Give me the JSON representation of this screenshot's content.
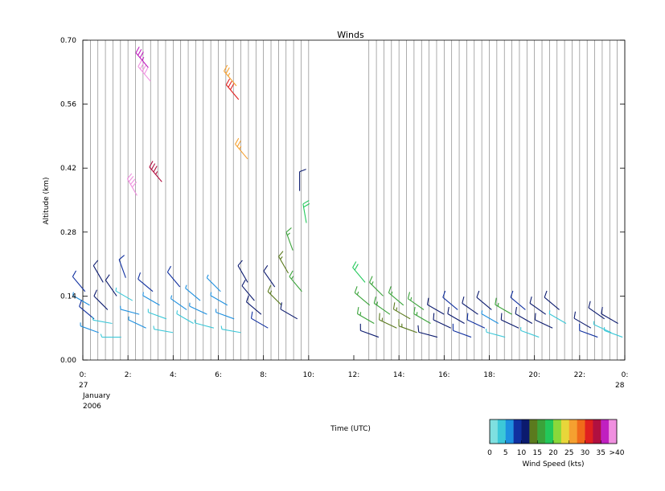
{
  "chart_data": {
    "type": "scatter",
    "title": "Winds",
    "xlabel": "Time (UTC)",
    "ylabel": "Altitude (km)",
    "xlim": [
      0,
      24
    ],
    "ylim": [
      0,
      0.7
    ],
    "grid": "vertical lines",
    "x_ticks": [
      {
        "value": 0,
        "label": "0:"
      },
      {
        "value": 2,
        "label": "2:"
      },
      {
        "value": 4,
        "label": "4:"
      },
      {
        "value": 6,
        "label": "6:"
      },
      {
        "value": 8,
        "label": "8:"
      },
      {
        "value": 10,
        "label": "10:"
      },
      {
        "value": 12,
        "label": "12:"
      },
      {
        "value": 14,
        "label": "14:"
      },
      {
        "value": 16,
        "label": "16:"
      },
      {
        "value": 18,
        "label": "18:"
      },
      {
        "value": 20,
        "label": "20:"
      },
      {
        "value": 22,
        "label": "22:"
      },
      {
        "value": 24,
        "label": "0:"
      }
    ],
    "y_ticks": [
      {
        "value": 0.0,
        "label": "0.00"
      },
      {
        "value": 0.14,
        "label": "0.14"
      },
      {
        "value": 0.28,
        "label": "0.28"
      },
      {
        "value": 0.42,
        "label": "0.42"
      },
      {
        "value": 0.56,
        "label": "0.56"
      },
      {
        "value": 0.7,
        "label": "0.70"
      }
    ],
    "date_label_start": [
      "27",
      "January",
      "2006"
    ],
    "date_label_end": [
      "28"
    ],
    "colorbar": {
      "label": "Wind Speed (kts)",
      "tick_labels": [
        "0",
        "5",
        "10",
        "15",
        "20",
        "25",
        "30",
        "35",
        ">40"
      ],
      "colors": [
        "#7fe0e0",
        "#3cc8d8",
        "#1e90e0",
        "#1030a0",
        "#0b1a6e",
        "#5b7a1e",
        "#3aa33a",
        "#22c85a",
        "#8ad83a",
        "#e8d63a",
        "#f5a030",
        "#f06a1a",
        "#e02020",
        "#b01040",
        "#c020c0",
        "#f090e0"
      ]
    },
    "barbs": [
      {
        "t": 0.1,
        "alt": 0.15,
        "dir": 320,
        "spd": 8
      },
      {
        "t": 0.3,
        "alt": 0.12,
        "dir": 300,
        "spd": 7
      },
      {
        "t": 0.5,
        "alt": 0.09,
        "dir": 310,
        "spd": 9
      },
      {
        "t": 0.7,
        "alt": 0.06,
        "dir": 290,
        "spd": 6
      },
      {
        "t": 0.9,
        "alt": 0.17,
        "dir": 330,
        "spd": 11
      },
      {
        "t": 1.1,
        "alt": 0.11,
        "dir": 315,
        "spd": 12
      },
      {
        "t": 1.3,
        "alt": 0.08,
        "dir": 280,
        "spd": 4
      },
      {
        "t": 1.5,
        "alt": 0.14,
        "dir": 325,
        "spd": 10
      },
      {
        "t": 1.7,
        "alt": 0.05,
        "dir": 270,
        "spd": 3
      },
      {
        "t": 1.9,
        "alt": 0.18,
        "dir": 340,
        "spd": 9
      },
      {
        "t": 2.2,
        "alt": 0.13,
        "dir": 300,
        "spd": 4
      },
      {
        "t": 2.5,
        "alt": 0.1,
        "dir": 285,
        "spd": 5
      },
      {
        "t": 2.8,
        "alt": 0.07,
        "dir": 295,
        "spd": 6
      },
      {
        "t": 3.1,
        "alt": 0.15,
        "dir": 310,
        "spd": 8
      },
      {
        "t": 3.4,
        "alt": 0.12,
        "dir": 300,
        "spd": 5
      },
      {
        "t": 3.7,
        "alt": 0.09,
        "dir": 290,
        "spd": 4
      },
      {
        "t": 4.0,
        "alt": 0.06,
        "dir": 280,
        "spd": 3
      },
      {
        "t": 4.3,
        "alt": 0.16,
        "dir": 320,
        "spd": 9
      },
      {
        "t": 4.6,
        "alt": 0.11,
        "dir": 305,
        "spd": 5
      },
      {
        "t": 4.9,
        "alt": 0.08,
        "dir": 300,
        "spd": 4
      },
      {
        "t": 5.2,
        "alt": 0.13,
        "dir": 310,
        "spd": 6
      },
      {
        "t": 5.5,
        "alt": 0.1,
        "dir": 295,
        "spd": 5
      },
      {
        "t": 5.8,
        "alt": 0.07,
        "dir": 285,
        "spd": 4
      },
      {
        "t": 6.1,
        "alt": 0.15,
        "dir": 315,
        "spd": 7
      },
      {
        "t": 6.4,
        "alt": 0.12,
        "dir": 300,
        "spd": 6
      },
      {
        "t": 6.7,
        "alt": 0.09,
        "dir": 290,
        "spd": 5
      },
      {
        "t": 7.0,
        "alt": 0.06,
        "dir": 280,
        "spd": 4
      },
      {
        "t": 7.3,
        "alt": 0.17,
        "dir": 330,
        "spd": 12
      },
      {
        "t": 7.6,
        "alt": 0.13,
        "dir": 320,
        "spd": 11
      },
      {
        "t": 7.9,
        "alt": 0.1,
        "dir": 310,
        "spd": 10
      },
      {
        "t": 8.2,
        "alt": 0.07,
        "dir": 300,
        "spd": 9
      },
      {
        "t": 8.5,
        "alt": 0.16,
        "dir": 325,
        "spd": 12
      },
      {
        "t": 8.8,
        "alt": 0.12,
        "dir": 315,
        "spd": 13
      },
      {
        "t": 9.1,
        "alt": 0.19,
        "dir": 330,
        "spd": 14
      },
      {
        "t": 9.3,
        "alt": 0.24,
        "dir": 340,
        "spd": 16
      },
      {
        "t": 9.5,
        "alt": 0.09,
        "dir": 300,
        "spd": 10
      },
      {
        "t": 9.7,
        "alt": 0.15,
        "dir": 320,
        "spd": 17
      },
      {
        "t": 9.9,
        "alt": 0.3,
        "dir": 350,
        "spd": 18
      },
      {
        "t": 9.6,
        "alt": 0.37,
        "dir": 0,
        "spd": 10
      },
      {
        "t": 12.5,
        "alt": 0.17,
        "dir": 320,
        "spd": 18
      },
      {
        "t": 12.7,
        "alt": 0.12,
        "dir": 310,
        "spd": 17
      },
      {
        "t": 12.9,
        "alt": 0.08,
        "dir": 300,
        "spd": 16
      },
      {
        "t": 13.1,
        "alt": 0.05,
        "dir": 290,
        "spd": 10
      },
      {
        "t": 13.3,
        "alt": 0.14,
        "dir": 315,
        "spd": 16
      },
      {
        "t": 13.6,
        "alt": 0.1,
        "dir": 305,
        "spd": 15
      },
      {
        "t": 13.9,
        "alt": 0.07,
        "dir": 295,
        "spd": 14
      },
      {
        "t": 14.2,
        "alt": 0.12,
        "dir": 310,
        "spd": 15
      },
      {
        "t": 14.5,
        "alt": 0.09,
        "dir": 300,
        "spd": 14
      },
      {
        "t": 14.8,
        "alt": 0.06,
        "dir": 290,
        "spd": 13
      },
      {
        "t": 15.1,
        "alt": 0.11,
        "dir": 305,
        "spd": 16
      },
      {
        "t": 15.4,
        "alt": 0.08,
        "dir": 300,
        "spd": 15
      },
      {
        "t": 15.7,
        "alt": 0.05,
        "dir": 285,
        "spd": 10
      },
      {
        "t": 16.0,
        "alt": 0.1,
        "dir": 300,
        "spd": 12
      },
      {
        "t": 16.3,
        "alt": 0.07,
        "dir": 295,
        "spd": 10
      },
      {
        "t": 16.6,
        "alt": 0.11,
        "dir": 310,
        "spd": 9
      },
      {
        "t": 16.9,
        "alt": 0.08,
        "dir": 300,
        "spd": 10
      },
      {
        "t": 17.2,
        "alt": 0.05,
        "dir": 290,
        "spd": 9
      },
      {
        "t": 17.5,
        "alt": 0.1,
        "dir": 305,
        "spd": 10
      },
      {
        "t": 17.8,
        "alt": 0.07,
        "dir": 295,
        "spd": 9
      },
      {
        "t": 18.1,
        "alt": 0.11,
        "dir": 310,
        "spd": 10
      },
      {
        "t": 18.4,
        "alt": 0.08,
        "dir": 300,
        "spd": 6
      },
      {
        "t": 18.7,
        "alt": 0.05,
        "dir": 285,
        "spd": 4
      },
      {
        "t": 19.0,
        "alt": 0.1,
        "dir": 300,
        "spd": 16
      },
      {
        "t": 19.3,
        "alt": 0.07,
        "dir": 295,
        "spd": 10
      },
      {
        "t": 19.6,
        "alt": 0.11,
        "dir": 310,
        "spd": 9
      },
      {
        "t": 19.9,
        "alt": 0.08,
        "dir": 300,
        "spd": 10
      },
      {
        "t": 20.2,
        "alt": 0.05,
        "dir": 290,
        "spd": 4
      },
      {
        "t": 20.5,
        "alt": 0.1,
        "dir": 305,
        "spd": 10
      },
      {
        "t": 20.8,
        "alt": 0.07,
        "dir": 295,
        "spd": 12
      },
      {
        "t": 21.1,
        "alt": 0.11,
        "dir": 310,
        "spd": 10
      },
      {
        "t": 21.4,
        "alt": 0.08,
        "dir": 300,
        "spd": 4
      },
      {
        "t": 22.5,
        "alt": 0.07,
        "dir": 300,
        "spd": 10
      },
      {
        "t": 22.8,
        "alt": 0.05,
        "dir": 290,
        "spd": 9
      },
      {
        "t": 23.1,
        "alt": 0.09,
        "dir": 305,
        "spd": 10
      },
      {
        "t": 23.4,
        "alt": 0.06,
        "dir": 295,
        "spd": 4
      },
      {
        "t": 23.7,
        "alt": 0.08,
        "dir": 300,
        "spd": 10
      },
      {
        "t": 23.9,
        "alt": 0.05,
        "dir": 290,
        "spd": 3
      },
      {
        "t": 2.9,
        "alt": 0.64,
        "dir": 320,
        "spd": 36
      },
      {
        "t": 3.0,
        "alt": 0.61,
        "dir": 320,
        "spd": 42
      },
      {
        "t": 2.4,
        "alt": 0.36,
        "dir": 330,
        "spd": 42
      },
      {
        "t": 3.5,
        "alt": 0.39,
        "dir": 320,
        "spd": 33
      },
      {
        "t": 6.8,
        "alt": 0.6,
        "dir": 320,
        "spd": 27
      },
      {
        "t": 6.9,
        "alt": 0.57,
        "dir": 320,
        "spd": 31
      },
      {
        "t": 7.3,
        "alt": 0.44,
        "dir": 320,
        "spd": 27
      }
    ]
  }
}
